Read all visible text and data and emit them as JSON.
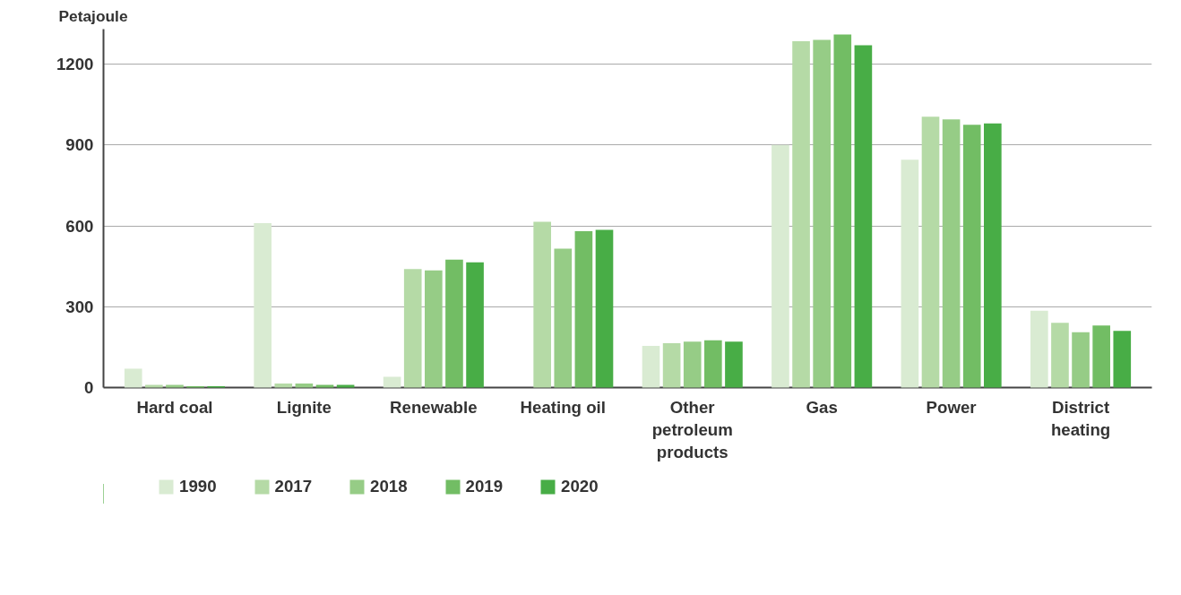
{
  "chart_data": {
    "type": "bar",
    "ylabel": "Petajoule",
    "categories": [
      "Hard coal",
      "Lignite",
      "Renewable",
      "Heating oil",
      "Other petroleum products",
      "Gas",
      "Power",
      "District heating"
    ],
    "series": [
      {
        "name": "1990",
        "color": "#d9ebd2",
        "values": [
          70,
          610,
          40,
          null,
          155,
          900,
          845,
          285
        ]
      },
      {
        "name": "2017",
        "color": "#b5daa6",
        "values": [
          10,
          15,
          440,
          615,
          165,
          1285,
          1005,
          240
        ]
      },
      {
        "name": "2018",
        "color": "#96cc86",
        "values": [
          10,
          15,
          435,
          515,
          170,
          1290,
          995,
          205
        ]
      },
      {
        "name": "2019",
        "color": "#72bd64",
        "values": [
          5,
          10,
          475,
          580,
          175,
          1310,
          975,
          230
        ]
      },
      {
        "name": "2020",
        "color": "#48ad46",
        "values": [
          5,
          10,
          465,
          585,
          170,
          1270,
          980,
          210
        ]
      }
    ],
    "ylim": [
      0,
      1330
    ],
    "yticks": [
      0,
      300,
      600,
      900,
      1200
    ],
    "grid": "y",
    "legend": "bottom left"
  }
}
